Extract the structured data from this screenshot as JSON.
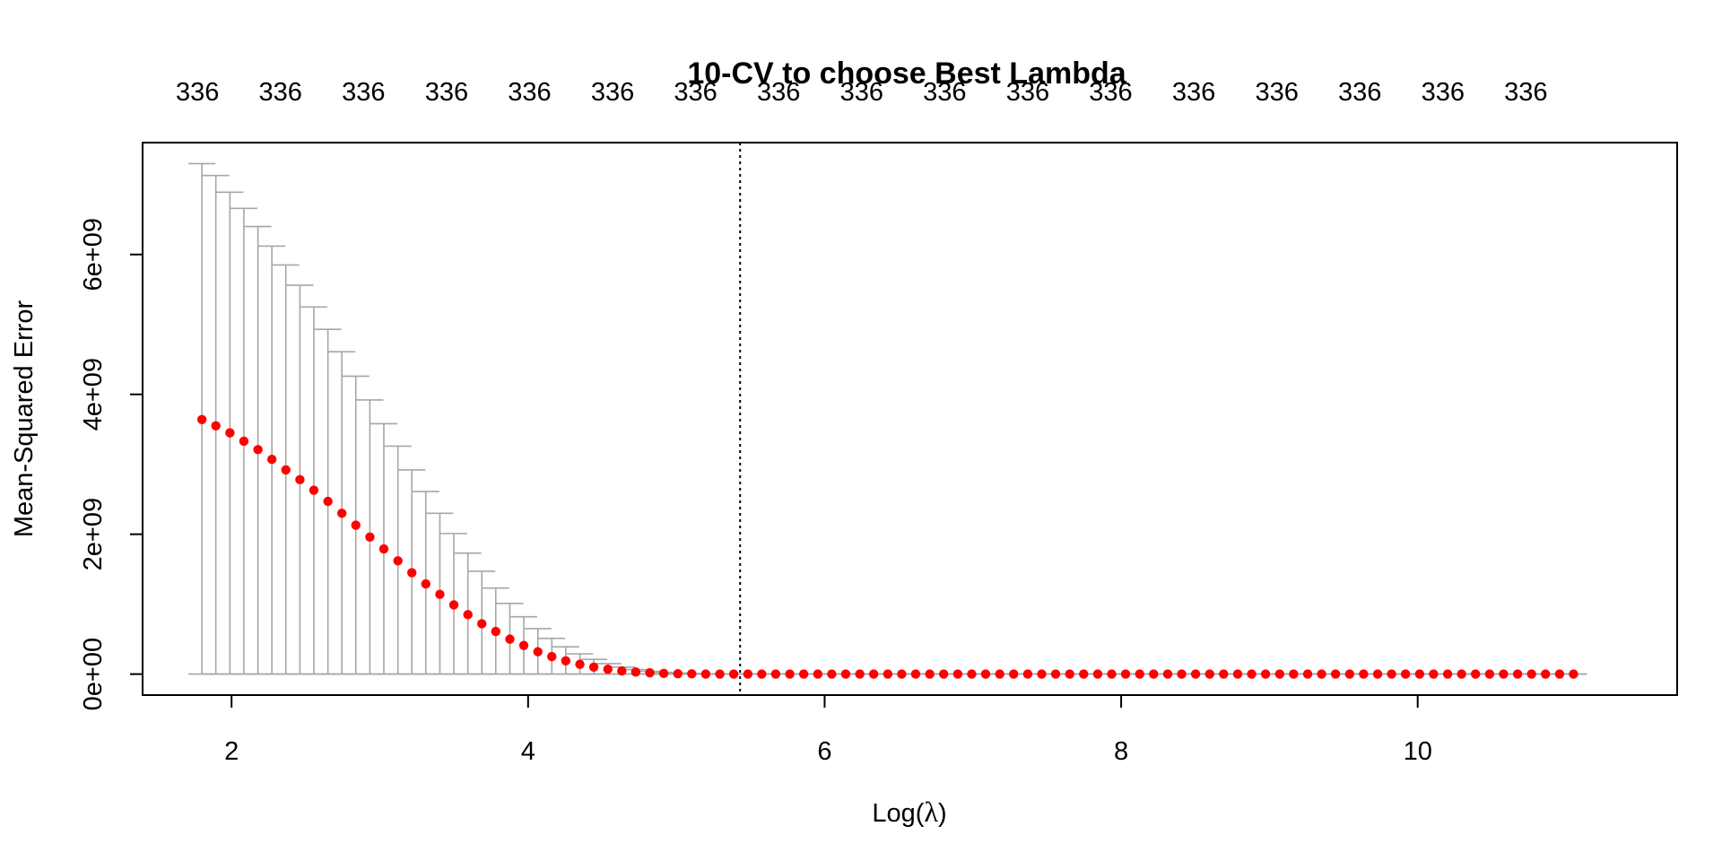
{
  "chart_data": {
    "type": "scatter",
    "title": "10-CV to choose Best Lambda",
    "xlabel_prefix": "Log(",
    "xlabel_symbol": "λ",
    "xlabel_suffix": ")",
    "ylabel": "Mean-Squared Error",
    "xlim": [
      1.4,
      11.75
    ],
    "ylim": [
      -300000000.0,
      7600000000.0
    ],
    "x_ticks": [
      2,
      4,
      6,
      8,
      10
    ],
    "x_tick_labels": [
      "2",
      "4",
      "6",
      "8",
      "10"
    ],
    "y_ticks": [
      0,
      2000000000.0,
      4000000000.0,
      6000000000.0
    ],
    "y_tick_labels": [
      "0e+00",
      "2e+09",
      "4e+09",
      "6e+09"
    ],
    "top_labels": [
      "336",
      "336",
      "336",
      "336",
      "336",
      "336",
      "336",
      "336",
      "336",
      "336",
      "336",
      "336",
      "336",
      "336",
      "336",
      "336",
      "336"
    ],
    "top_label_x": [
      1.77,
      2.33,
      2.89,
      3.45,
      4.01,
      4.57,
      5.13,
      5.69,
      6.25,
      6.81,
      7.37,
      7.93,
      8.49,
      9.05,
      9.61,
      10.17,
      10.73
    ],
    "best_lambda_log": 5.43,
    "grid": false,
    "legend": "none",
    "series": [
      {
        "x": [
          1.8,
          1.894,
          1.989,
          2.083,
          2.178,
          2.272,
          2.366,
          2.461,
          2.555,
          2.65,
          2.744,
          2.838,
          2.933,
          3.027,
          3.122,
          3.216,
          3.31,
          3.405,
          3.499,
          3.594,
          3.688,
          3.782,
          3.877,
          3.971,
          4.066,
          4.16,
          4.254,
          4.349,
          4.443,
          4.538,
          4.632,
          4.726,
          4.821,
          4.915,
          5.01,
          5.104,
          5.198,
          5.293,
          5.387,
          5.482,
          5.576,
          5.67,
          5.765,
          5.859,
          5.954,
          6.048,
          6.142,
          6.237,
          6.331,
          6.426,
          6.52,
          6.614,
          6.709,
          6.803,
          6.898,
          6.992,
          7.086,
          7.181,
          7.275,
          7.37,
          7.464,
          7.558,
          7.653,
          7.747,
          7.842,
          7.936,
          8.03,
          8.125,
          8.219,
          8.314,
          8.408,
          8.502,
          8.597,
          8.691,
          8.786,
          8.88,
          8.974,
          9.069,
          9.163,
          9.258,
          9.352,
          9.446,
          9.541,
          9.635,
          9.73,
          9.824,
          9.918,
          10.013,
          10.107,
          10.202,
          10.296,
          10.39,
          10.485,
          10.579,
          10.674,
          10.768,
          10.862,
          10.957,
          11.051
        ],
        "y": [
          3640000000.0,
          3550000000.0,
          3450000000.0,
          3330000000.0,
          3210000000.0,
          3070000000.0,
          2920000000.0,
          2780000000.0,
          2630000000.0,
          2470000000.0,
          2300000000.0,
          2130000000.0,
          1960000000.0,
          1790000000.0,
          1620000000.0,
          1450000000.0,
          1290000000.0,
          1140000000.0,
          990000000.0,
          850000000.0,
          720000000.0,
          610000000.0,
          500000000.0,
          410000000.0,
          320000000.0,
          250000000.0,
          190000000.0,
          140000000.0,
          100000000.0,
          70000000.0,
          45000000.0,
          30000000.0,
          18000000.0,
          10000000.0,
          6000000.0,
          4000000.0,
          0,
          0,
          0,
          0,
          0,
          0,
          0,
          0,
          0,
          0,
          0,
          0,
          0,
          0,
          0,
          0,
          0,
          0,
          0,
          0,
          0,
          0,
          0,
          0,
          0,
          0,
          0,
          0,
          0,
          0,
          0,
          0,
          0,
          0,
          0,
          0,
          0,
          0,
          0,
          0,
          0,
          0,
          0,
          0,
          0,
          0,
          0,
          0,
          0,
          0,
          0,
          0,
          0,
          0,
          0,
          0,
          0,
          0,
          0,
          0,
          0,
          0,
          0
        ],
        "upper": [
          7300000000.0,
          7130000000.0,
          6890000000.0,
          6660000000.0,
          6400000000.0,
          6120000000.0,
          5850000000.0,
          5560000000.0,
          5250000000.0,
          4930000000.0,
          4610000000.0,
          4260000000.0,
          3920000000.0,
          3580000000.0,
          3260000000.0,
          2920000000.0,
          2610000000.0,
          2300000000.0,
          2010000000.0,
          1730000000.0,
          1470000000.0,
          1230000000.0,
          1010000000.0,
          820000000.0,
          650000000.0,
          510000000.0,
          390000000.0,
          290000000.0,
          210000000.0,
          150000000.0,
          100000000.0,
          65000000.0,
          40000000.0,
          25000000.0,
          15000000.0,
          9000000.0,
          5000000.0,
          3000000.0,
          2000000.0,
          1000000.0,
          0,
          0,
          0,
          0,
          0,
          0,
          0,
          0,
          0,
          0,
          0,
          0,
          0,
          0,
          0,
          0,
          0,
          0,
          0,
          0,
          0,
          0,
          0,
          0,
          0,
          0,
          0,
          0,
          0,
          0,
          0,
          0,
          0,
          0,
          0,
          0,
          0,
          0,
          0,
          0,
          0,
          0,
          0,
          0,
          0,
          0,
          0,
          0,
          0,
          0,
          0,
          0,
          0,
          0,
          0,
          0,
          0,
          0,
          0
        ],
        "lower": [
          0,
          0,
          0,
          0,
          0,
          0,
          0,
          0,
          0,
          0,
          0,
          0,
          0,
          0,
          0,
          0,
          0,
          0,
          0,
          0,
          0,
          0,
          0,
          0,
          0,
          0,
          0,
          0,
          0,
          0,
          0,
          0,
          0,
          0,
          0,
          0,
          0,
          0,
          0,
          0,
          0,
          0,
          0,
          0,
          0,
          0,
          0,
          0,
          0,
          0,
          0,
          0,
          0,
          0,
          0,
          0,
          0,
          0,
          0,
          0,
          0,
          0,
          0,
          0,
          0,
          0,
          0,
          0,
          0,
          0,
          0,
          0,
          0,
          0,
          0,
          0,
          0,
          0,
          0,
          0,
          0,
          0,
          0,
          0,
          0,
          0,
          0,
          0,
          0,
          0,
          0,
          0,
          0,
          0,
          0,
          0,
          0,
          0,
          0
        ]
      }
    ],
    "colors": {
      "points": "#ff0000",
      "errorbars": "#a6a6a6",
      "axes": "#000000"
    }
  }
}
